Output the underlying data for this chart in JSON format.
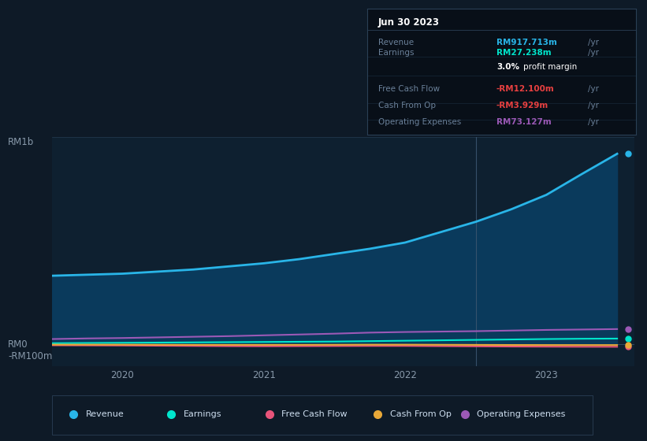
{
  "background_color": "#0e1a27",
  "plot_bg_color": "#0e2030",
  "ylabel_top": "RM1b",
  "ylabel_bottom": "-RM100m",
  "ylabel_zero": "RM0",
  "x_ticks_labels": [
    "2020",
    "2021",
    "2022",
    "2023"
  ],
  "ylim": [
    -105000000,
    1000000000
  ],
  "revenue": {
    "label": "Revenue",
    "color": "#29b5e8",
    "fill_color": "#0a3a5c",
    "x": [
      2019.5,
      2019.75,
      2020.0,
      2020.25,
      2020.5,
      2020.75,
      2021.0,
      2021.25,
      2021.5,
      2021.75,
      2022.0,
      2022.25,
      2022.5,
      2022.75,
      2023.0,
      2023.25,
      2023.5
    ],
    "y": [
      330000000,
      335000000,
      340000000,
      350000000,
      360000000,
      375000000,
      390000000,
      410000000,
      435000000,
      460000000,
      490000000,
      540000000,
      590000000,
      650000000,
      720000000,
      820000000,
      917713000
    ]
  },
  "earnings": {
    "label": "Earnings",
    "color": "#00e5cc",
    "x": [
      2019.5,
      2019.75,
      2020.0,
      2020.25,
      2020.5,
      2020.75,
      2021.0,
      2021.25,
      2021.5,
      2021.75,
      2022.0,
      2022.25,
      2022.5,
      2022.75,
      2023.0,
      2023.25,
      2023.5
    ],
    "y": [
      5000000,
      6000000,
      7000000,
      8000000,
      9000000,
      10000000,
      11000000,
      12000000,
      13000000,
      15000000,
      17000000,
      19000000,
      21000000,
      23000000,
      25000000,
      26500000,
      27238000
    ]
  },
  "free_cash_flow": {
    "label": "Free Cash Flow",
    "color": "#e8547a",
    "x": [
      2019.5,
      2019.75,
      2020.0,
      2020.25,
      2020.5,
      2020.75,
      2021.0,
      2021.25,
      2021.5,
      2021.75,
      2022.0,
      2022.25,
      2022.5,
      2022.75,
      2023.0,
      2023.25,
      2023.5
    ],
    "y": [
      -5000000,
      -5500000,
      -6000000,
      -7000000,
      -8000000,
      -9000000,
      -9500000,
      -9000000,
      -8500000,
      -8000000,
      -8000000,
      -9000000,
      -10000000,
      -11000000,
      -11500000,
      -12000000,
      -12100000
    ]
  },
  "cash_from_op": {
    "label": "Cash From Op",
    "color": "#e8a838",
    "x": [
      2019.5,
      2019.75,
      2020.0,
      2020.25,
      2020.5,
      2020.75,
      2021.0,
      2021.25,
      2021.5,
      2021.75,
      2022.0,
      2022.25,
      2022.5,
      2022.75,
      2023.0,
      2023.25,
      2023.5
    ],
    "y": [
      -2000000,
      -2000000,
      -2000000,
      -2500000,
      -3000000,
      -3000000,
      -3000000,
      -2800000,
      -2500000,
      -2000000,
      -2000000,
      -2500000,
      -3000000,
      -3500000,
      -3800000,
      -3929000,
      -3929000
    ]
  },
  "operating_expenses": {
    "label": "Operating Expenses",
    "color": "#9b59b6",
    "x": [
      2019.5,
      2019.75,
      2020.0,
      2020.25,
      2020.5,
      2020.75,
      2021.0,
      2021.25,
      2021.5,
      2021.75,
      2022.0,
      2022.25,
      2022.5,
      2022.75,
      2023.0,
      2023.25,
      2023.5
    ],
    "y": [
      25000000,
      28000000,
      30000000,
      33000000,
      36000000,
      39000000,
      43000000,
      47000000,
      51000000,
      56000000,
      59000000,
      61000000,
      63000000,
      66000000,
      69000000,
      71000000,
      73127000
    ]
  },
  "info_box": {
    "date": "Jun 30 2023",
    "rows": [
      {
        "label": "Revenue",
        "value": "RM917.713m",
        "value_color": "#29b5e8",
        "suffix": " /yr",
        "extra": null
      },
      {
        "label": "Earnings",
        "value": "RM27.238m",
        "value_color": "#00e5cc",
        "suffix": " /yr",
        "extra": "3.0% profit margin"
      },
      {
        "label": "Free Cash Flow",
        "value": "-RM12.100m",
        "value_color": "#e84040",
        "suffix": " /yr",
        "extra": null
      },
      {
        "label": "Cash From Op",
        "value": "-RM3.929m",
        "value_color": "#e84040",
        "suffix": " /yr",
        "extra": null
      },
      {
        "label": "Operating Expenses",
        "value": "RM73.127m",
        "value_color": "#9b59b6",
        "suffix": " /yr",
        "extra": null
      }
    ]
  },
  "vline_x": 2022.5,
  "legend_items": [
    {
      "label": "Revenue",
      "color": "#29b5e8"
    },
    {
      "label": "Earnings",
      "color": "#00e5cc"
    },
    {
      "label": "Free Cash Flow",
      "color": "#e8547a"
    },
    {
      "label": "Cash From Op",
      "color": "#e8a838"
    },
    {
      "label": "Operating Expenses",
      "color": "#9b59b6"
    }
  ]
}
